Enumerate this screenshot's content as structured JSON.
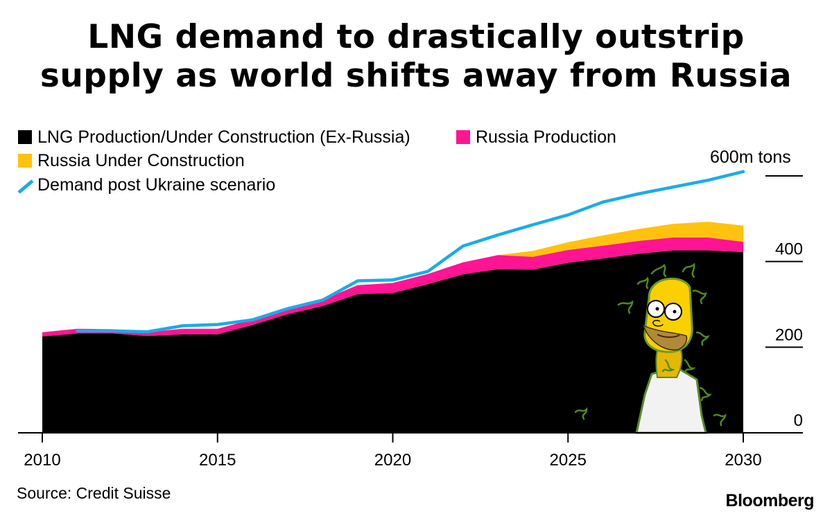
{
  "title_lines": [
    "LNG demand to drastically outstrip",
    "supply as world shifts away from Russia"
  ],
  "source": "Source: Credit Suisse",
  "brand": "Bloomberg",
  "colors": {
    "production_ex_russia": "#000000",
    "russia_production": "#ff1493",
    "russia_under_construction": "#ffc20e",
    "demand": "#1aace8"
  },
  "chart_data": {
    "type": "area",
    "title": "LNG demand to drastically outstrip supply as world shifts away from Russia",
    "unit_label": "600m tons",
    "x": [
      2010,
      2011,
      2012,
      2013,
      2014,
      2015,
      2016,
      2017,
      2018,
      2019,
      2020,
      2021,
      2022,
      2023,
      2024,
      2025,
      2026,
      2027,
      2028,
      2029,
      2030
    ],
    "xlim": [
      2010,
      2030
    ],
    "ylim": [
      0,
      600
    ],
    "x_ticks": [
      2010,
      2015,
      2020,
      2025,
      2030
    ],
    "x_tick_labels": [
      "2010",
      "2015",
      "2020",
      "2025",
      "2030"
    ],
    "y_ticks": [
      0,
      200,
      400,
      600
    ],
    "y_tick_labels": [
      "0",
      "200",
      "400"
    ],
    "stacked": true,
    "series": [
      {
        "name": "LNG Production/Under Construction (Ex-Russia)",
        "kind": "area",
        "values": [
          225,
          232,
          232,
          226,
          230,
          230,
          252,
          277,
          296,
          324,
          326,
          347,
          370,
          382,
          381,
          397,
          407,
          418,
          426,
          426,
          422
        ]
      },
      {
        "name": "Russia Production",
        "kind": "area",
        "values": [
          10,
          11,
          10,
          9,
          13,
          13,
          13,
          14,
          15,
          21,
          24,
          24,
          28,
          33,
          30,
          30,
          30,
          30,
          30,
          30,
          24
        ]
      },
      {
        "name": "Russia Under Construction",
        "kind": "area",
        "values": [
          0,
          0,
          0,
          0,
          0,
          0,
          0,
          0,
          0,
          0,
          0,
          0,
          0,
          0,
          14,
          18,
          24,
          28,
          32,
          37,
          38
        ]
      },
      {
        "name": "Demand post Ukraine scenario",
        "kind": "line",
        "x": [
          2011,
          2012,
          2013,
          2014,
          2015,
          2016,
          2017,
          2018,
          2019,
          2020,
          2021,
          2022,
          2023,
          2024,
          2025,
          2026,
          2027,
          2028,
          2029,
          2030
        ],
        "values": [
          238,
          238,
          236,
          250,
          253,
          264,
          290,
          310,
          355,
          357,
          377,
          436,
          462,
          486,
          509,
          539,
          558,
          574,
          590,
          610
        ]
      }
    ],
    "legend_position": "top-left",
    "grid": false
  }
}
